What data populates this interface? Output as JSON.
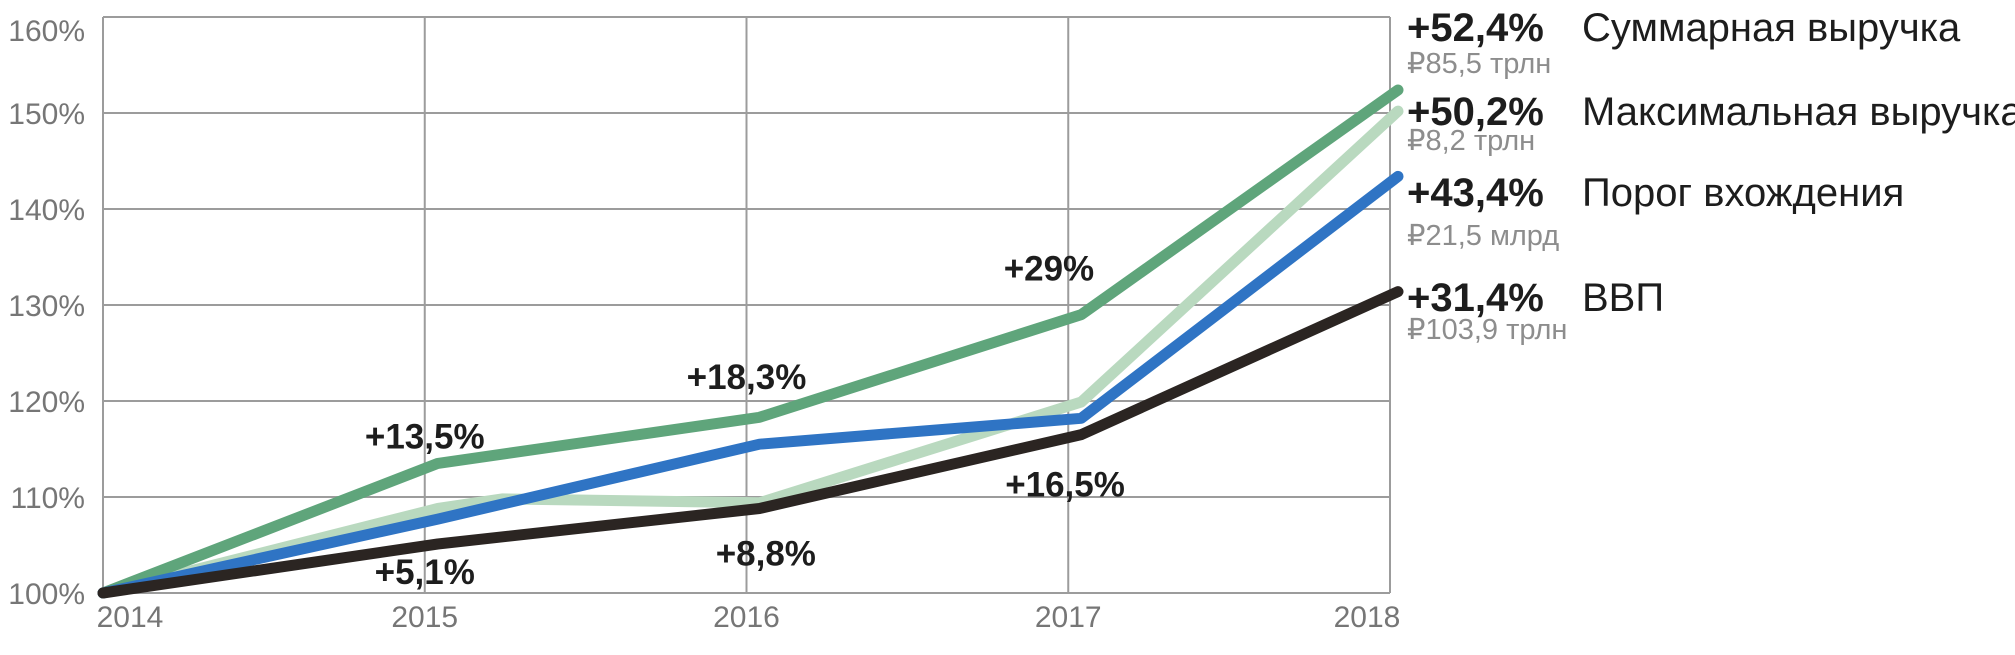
{
  "page": {
    "background": "#ffffff"
  },
  "colors": {
    "grid": "#9c9c9c",
    "axis_text": "#767676",
    "annotation_text": "#1d1d1d",
    "legend_text": "#1d1d1d",
    "legend_value_text": "#8d8d8d"
  },
  "chart_data": {
    "type": "line",
    "title": "",
    "xlabel": "",
    "ylabel": "",
    "x_ticks": [
      2014,
      2015,
      2016,
      2017,
      2018
    ],
    "x_tick_labels": [
      "2014",
      "2015",
      "2016",
      "2017",
      "2018"
    ],
    "y_ticks": [
      100,
      110,
      120,
      130,
      140,
      150,
      160
    ],
    "y_tick_labels": [
      "100%",
      "110%",
      "120%",
      "130%",
      "140%",
      "150%",
      "160%"
    ],
    "ylim": [
      100,
      160
    ],
    "grid": true,
    "legend_position": "right",
    "series": [
      {
        "id": "max-revenue",
        "name": "Максимальная выручка",
        "color": "#b9d9bf",
        "points": [
          [
            2014,
            100
          ],
          [
            2015,
            108.8
          ],
          [
            2015.2,
            109.8
          ],
          [
            2016,
            109.4
          ],
          [
            2017,
            119.9
          ],
          [
            2018,
            150.2
          ]
        ],
        "final_change": "+50,2%",
        "final_value": "₽8,2 трлн"
      },
      {
        "id": "total-revenue",
        "name": "Суммарная выручка",
        "color": "#5fa57b",
        "points": [
          [
            2014,
            100
          ],
          [
            2015,
            113.5
          ],
          [
            2016,
            118.3
          ],
          [
            2017,
            129.0
          ],
          [
            2018,
            152.4
          ]
        ],
        "final_change": "+52,4%",
        "final_value": "₽85,5 трлн"
      },
      {
        "id": "entry-threshold",
        "name": "Порог вхождения",
        "color": "#2f74c4",
        "points": [
          [
            2014,
            100
          ],
          [
            2015,
            107.7
          ],
          [
            2016,
            115.5
          ],
          [
            2017,
            118.2
          ],
          [
            2018,
            143.4
          ]
        ],
        "final_change": "+43,4%",
        "final_value": "₽21,5 млрд"
      },
      {
        "id": "gdp",
        "name": "ВВП",
        "color": "#2b2522",
        "points": [
          [
            2014,
            100
          ],
          [
            2015,
            105.1
          ],
          [
            2016,
            108.8
          ],
          [
            2017,
            116.5
          ],
          [
            2018,
            131.4
          ]
        ],
        "final_change": "+31,4%",
        "final_value": "₽103,9 трлн"
      }
    ],
    "annotations": [
      {
        "text": "+13,5%",
        "x": 2015.0,
        "y": 116.3,
        "series": "total-revenue"
      },
      {
        "text": "+18,3%",
        "x": 2016.0,
        "y": 122.5,
        "series": "total-revenue"
      },
      {
        "text": "+29%",
        "x": 2016.94,
        "y": 133.8,
        "series": "total-revenue"
      },
      {
        "text": "+5,1%",
        "x": 2015.0,
        "y": 102.2,
        "series": "gdp"
      },
      {
        "text": "+8,8%",
        "x": 2016.06,
        "y": 104.1,
        "series": "gdp"
      },
      {
        "text": "+16,5%",
        "x": 2016.99,
        "y": 111.3,
        "series": "gdp"
      }
    ]
  },
  "legend": {
    "entries": [
      {
        "series": "total-revenue",
        "change": "+52,4%",
        "value": "₽85,5 трлн",
        "name": "Суммарная выручка"
      },
      {
        "series": "max-revenue",
        "change": "+50,2%",
        "value": "₽8,2 трлн",
        "name": "Максимальная выручка"
      },
      {
        "series": "entry-threshold",
        "change": "+43,4%",
        "value": "₽21,5 млрд",
        "name": "Порог вхождения"
      },
      {
        "series": "gdp",
        "change": "+31,4%",
        "value": "₽103,9 трлн",
        "name": "ВВП"
      }
    ]
  }
}
